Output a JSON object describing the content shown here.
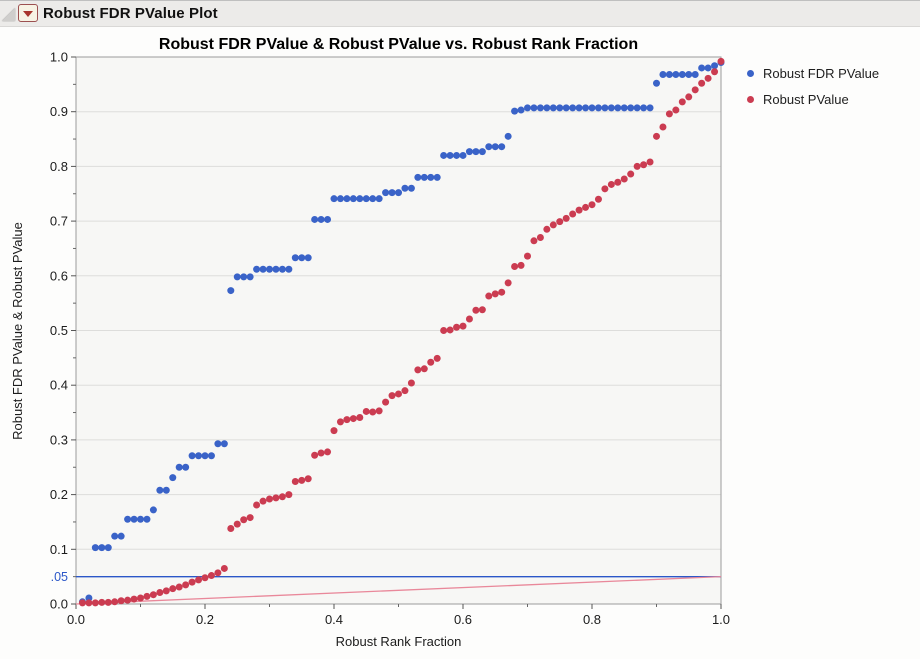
{
  "window": {
    "title": "Robust FDR PValue Plot"
  },
  "icons": {
    "disclosure": "outline-disclosure-triangle-icon",
    "menu": "red-triangle-menu-icon"
  },
  "legend": [
    {
      "label": "Robust FDR PValue",
      "color": "#3A63C8"
    },
    {
      "label": "Robust PValue",
      "color": "#CB3C51"
    }
  ],
  "colors": {
    "blue_series": "#3A63C8",
    "red_series": "#CB3C51",
    "blue_ref_line": "#2B57C8",
    "red_ref_line": "#E9889A",
    "grid": "#DDDDDB",
    "frame": "#9B9B9B",
    "plot_bg": "#F7F7F5",
    "tick_text": "#1C1C1C",
    "special_tick_text": "#2B57C8"
  },
  "chart_data": {
    "type": "scatter",
    "title": "Robust FDR PValue & Robust PValue vs. Robust Rank Fraction",
    "xlabel": "Robust Rank Fraction",
    "ylabel": "Robust FDR PValue & Robust PValue",
    "xlim": [
      0,
      1.0
    ],
    "ylim": [
      0,
      1.0
    ],
    "grid": "horizontal-only",
    "legend_position": "right",
    "x_major_ticks": [
      0.0,
      0.2,
      0.4,
      0.6,
      0.8,
      1.0
    ],
    "x_major_labels": [
      "0.0",
      "0.2",
      "0.4",
      "0.6",
      "0.8",
      "1.0"
    ],
    "x_minor_step": 0.1,
    "y_major_ticks": [
      0.0,
      0.1,
      0.2,
      0.3,
      0.4,
      0.5,
      0.6,
      0.7,
      0.8,
      0.9,
      1.0
    ],
    "y_major_labels": [
      "0.0",
      "0.1",
      "0.2",
      "0.3",
      "0.4",
      "0.5",
      "0.6",
      "0.7",
      "0.8",
      "0.9",
      "1.0"
    ],
    "y_minor_step": 0.05,
    "special_y_tick": {
      "value": 0.05,
      "label": ".05"
    },
    "reference_lines": [
      {
        "kind": "horizontal",
        "y": 0.05,
        "color_key": "blue_ref_line"
      },
      {
        "kind": "segment",
        "from": [
          0,
          0
        ],
        "to": [
          1.0,
          0.05
        ],
        "color_key": "red_ref_line"
      }
    ],
    "series": [
      {
        "name": "Robust FDR PValue",
        "color_key": "blue_series",
        "points": [
          [
            0.01,
            0.004
          ],
          [
            0.02,
            0.011
          ],
          [
            0.03,
            0.103
          ],
          [
            0.04,
            0.103
          ],
          [
            0.05,
            0.103
          ],
          [
            0.06,
            0.124
          ],
          [
            0.07,
            0.124
          ],
          [
            0.08,
            0.155
          ],
          [
            0.09,
            0.155
          ],
          [
            0.1,
            0.155
          ],
          [
            0.11,
            0.155
          ],
          [
            0.12,
            0.172
          ],
          [
            0.13,
            0.208
          ],
          [
            0.14,
            0.208
          ],
          [
            0.15,
            0.231
          ],
          [
            0.16,
            0.25
          ],
          [
            0.17,
            0.25
          ],
          [
            0.18,
            0.271
          ],
          [
            0.19,
            0.271
          ],
          [
            0.2,
            0.271
          ],
          [
            0.21,
            0.271
          ],
          [
            0.22,
            0.293
          ],
          [
            0.23,
            0.293
          ],
          [
            0.24,
            0.573
          ],
          [
            0.25,
            0.598
          ],
          [
            0.26,
            0.598
          ],
          [
            0.27,
            0.598
          ],
          [
            0.28,
            0.612
          ],
          [
            0.29,
            0.612
          ],
          [
            0.3,
            0.612
          ],
          [
            0.31,
            0.612
          ],
          [
            0.32,
            0.612
          ],
          [
            0.33,
            0.612
          ],
          [
            0.34,
            0.633
          ],
          [
            0.35,
            0.633
          ],
          [
            0.36,
            0.633
          ],
          [
            0.37,
            0.703
          ],
          [
            0.38,
            0.703
          ],
          [
            0.39,
            0.703
          ],
          [
            0.4,
            0.741
          ],
          [
            0.41,
            0.741
          ],
          [
            0.42,
            0.741
          ],
          [
            0.43,
            0.741
          ],
          [
            0.44,
            0.741
          ],
          [
            0.45,
            0.741
          ],
          [
            0.46,
            0.741
          ],
          [
            0.47,
            0.741
          ],
          [
            0.48,
            0.752
          ],
          [
            0.49,
            0.752
          ],
          [
            0.5,
            0.752
          ],
          [
            0.51,
            0.76
          ],
          [
            0.52,
            0.76
          ],
          [
            0.53,
            0.78
          ],
          [
            0.54,
            0.78
          ],
          [
            0.55,
            0.78
          ],
          [
            0.56,
            0.78
          ],
          [
            0.57,
            0.82
          ],
          [
            0.58,
            0.82
          ],
          [
            0.59,
            0.82
          ],
          [
            0.6,
            0.82
          ],
          [
            0.61,
            0.827
          ],
          [
            0.62,
            0.827
          ],
          [
            0.63,
            0.827
          ],
          [
            0.64,
            0.836
          ],
          [
            0.65,
            0.836
          ],
          [
            0.66,
            0.836
          ],
          [
            0.67,
            0.855
          ],
          [
            0.68,
            0.901
          ],
          [
            0.69,
            0.903
          ],
          [
            0.7,
            0.907
          ],
          [
            0.71,
            0.907
          ],
          [
            0.72,
            0.907
          ],
          [
            0.73,
            0.907
          ],
          [
            0.74,
            0.907
          ],
          [
            0.75,
            0.907
          ],
          [
            0.76,
            0.907
          ],
          [
            0.77,
            0.907
          ],
          [
            0.78,
            0.907
          ],
          [
            0.79,
            0.907
          ],
          [
            0.8,
            0.907
          ],
          [
            0.81,
            0.907
          ],
          [
            0.82,
            0.907
          ],
          [
            0.83,
            0.907
          ],
          [
            0.84,
            0.907
          ],
          [
            0.85,
            0.907
          ],
          [
            0.86,
            0.907
          ],
          [
            0.87,
            0.907
          ],
          [
            0.88,
            0.907
          ],
          [
            0.89,
            0.907
          ],
          [
            0.9,
            0.952
          ],
          [
            0.91,
            0.968
          ],
          [
            0.92,
            0.968
          ],
          [
            0.93,
            0.968
          ],
          [
            0.94,
            0.968
          ],
          [
            0.95,
            0.968
          ],
          [
            0.96,
            0.968
          ],
          [
            0.97,
            0.98
          ],
          [
            0.98,
            0.98
          ],
          [
            0.99,
            0.984
          ],
          [
            1.0,
            0.99
          ]
        ]
      },
      {
        "name": "Robust PValue",
        "color_key": "red_series",
        "points": [
          [
            0.01,
            0.002
          ],
          [
            0.02,
            0.002
          ],
          [
            0.03,
            0.002
          ],
          [
            0.04,
            0.003
          ],
          [
            0.05,
            0.003
          ],
          [
            0.06,
            0.004
          ],
          [
            0.07,
            0.006
          ],
          [
            0.08,
            0.007
          ],
          [
            0.09,
            0.009
          ],
          [
            0.1,
            0.011
          ],
          [
            0.11,
            0.014
          ],
          [
            0.12,
            0.017
          ],
          [
            0.13,
            0.021
          ],
          [
            0.14,
            0.024
          ],
          [
            0.15,
            0.028
          ],
          [
            0.16,
            0.031
          ],
          [
            0.17,
            0.035
          ],
          [
            0.18,
            0.04
          ],
          [
            0.19,
            0.044
          ],
          [
            0.2,
            0.048
          ],
          [
            0.21,
            0.052
          ],
          [
            0.22,
            0.057
          ],
          [
            0.23,
            0.065
          ],
          [
            0.24,
            0.138
          ],
          [
            0.25,
            0.146
          ],
          [
            0.26,
            0.154
          ],
          [
            0.27,
            0.158
          ],
          [
            0.28,
            0.181
          ],
          [
            0.29,
            0.188
          ],
          [
            0.3,
            0.192
          ],
          [
            0.31,
            0.194
          ],
          [
            0.32,
            0.196
          ],
          [
            0.33,
            0.2
          ],
          [
            0.34,
            0.224
          ],
          [
            0.35,
            0.226
          ],
          [
            0.36,
            0.229
          ],
          [
            0.37,
            0.272
          ],
          [
            0.38,
            0.276
          ],
          [
            0.39,
            0.278
          ],
          [
            0.4,
            0.317
          ],
          [
            0.41,
            0.333
          ],
          [
            0.42,
            0.337
          ],
          [
            0.43,
            0.339
          ],
          [
            0.44,
            0.341
          ],
          [
            0.45,
            0.352
          ],
          [
            0.46,
            0.351
          ],
          [
            0.47,
            0.353
          ],
          [
            0.48,
            0.369
          ],
          [
            0.49,
            0.381
          ],
          [
            0.5,
            0.384
          ],
          [
            0.51,
            0.39
          ],
          [
            0.52,
            0.404
          ],
          [
            0.53,
            0.428
          ],
          [
            0.54,
            0.43
          ],
          [
            0.55,
            0.442
          ],
          [
            0.56,
            0.449
          ],
          [
            0.57,
            0.5
          ],
          [
            0.58,
            0.501
          ],
          [
            0.59,
            0.506
          ],
          [
            0.6,
            0.508
          ],
          [
            0.61,
            0.521
          ],
          [
            0.62,
            0.537
          ],
          [
            0.63,
            0.538
          ],
          [
            0.64,
            0.563
          ],
          [
            0.65,
            0.567
          ],
          [
            0.66,
            0.57
          ],
          [
            0.67,
            0.587
          ],
          [
            0.68,
            0.617
          ],
          [
            0.69,
            0.619
          ],
          [
            0.7,
            0.636
          ],
          [
            0.71,
            0.664
          ],
          [
            0.72,
            0.67
          ],
          [
            0.73,
            0.685
          ],
          [
            0.74,
            0.693
          ],
          [
            0.75,
            0.699
          ],
          [
            0.76,
            0.705
          ],
          [
            0.77,
            0.713
          ],
          [
            0.78,
            0.72
          ],
          [
            0.79,
            0.725
          ],
          [
            0.8,
            0.73
          ],
          [
            0.81,
            0.74
          ],
          [
            0.82,
            0.759
          ],
          [
            0.83,
            0.767
          ],
          [
            0.84,
            0.771
          ],
          [
            0.85,
            0.777
          ],
          [
            0.86,
            0.786
          ],
          [
            0.87,
            0.8
          ],
          [
            0.88,
            0.803
          ],
          [
            0.89,
            0.808
          ],
          [
            0.9,
            0.855
          ],
          [
            0.91,
            0.872
          ],
          [
            0.92,
            0.896
          ],
          [
            0.93,
            0.903
          ],
          [
            0.94,
            0.918
          ],
          [
            0.95,
            0.927
          ],
          [
            0.96,
            0.94
          ],
          [
            0.97,
            0.952
          ],
          [
            0.98,
            0.961
          ],
          [
            0.99,
            0.973
          ],
          [
            1.0,
            0.992
          ]
        ]
      }
    ]
  }
}
